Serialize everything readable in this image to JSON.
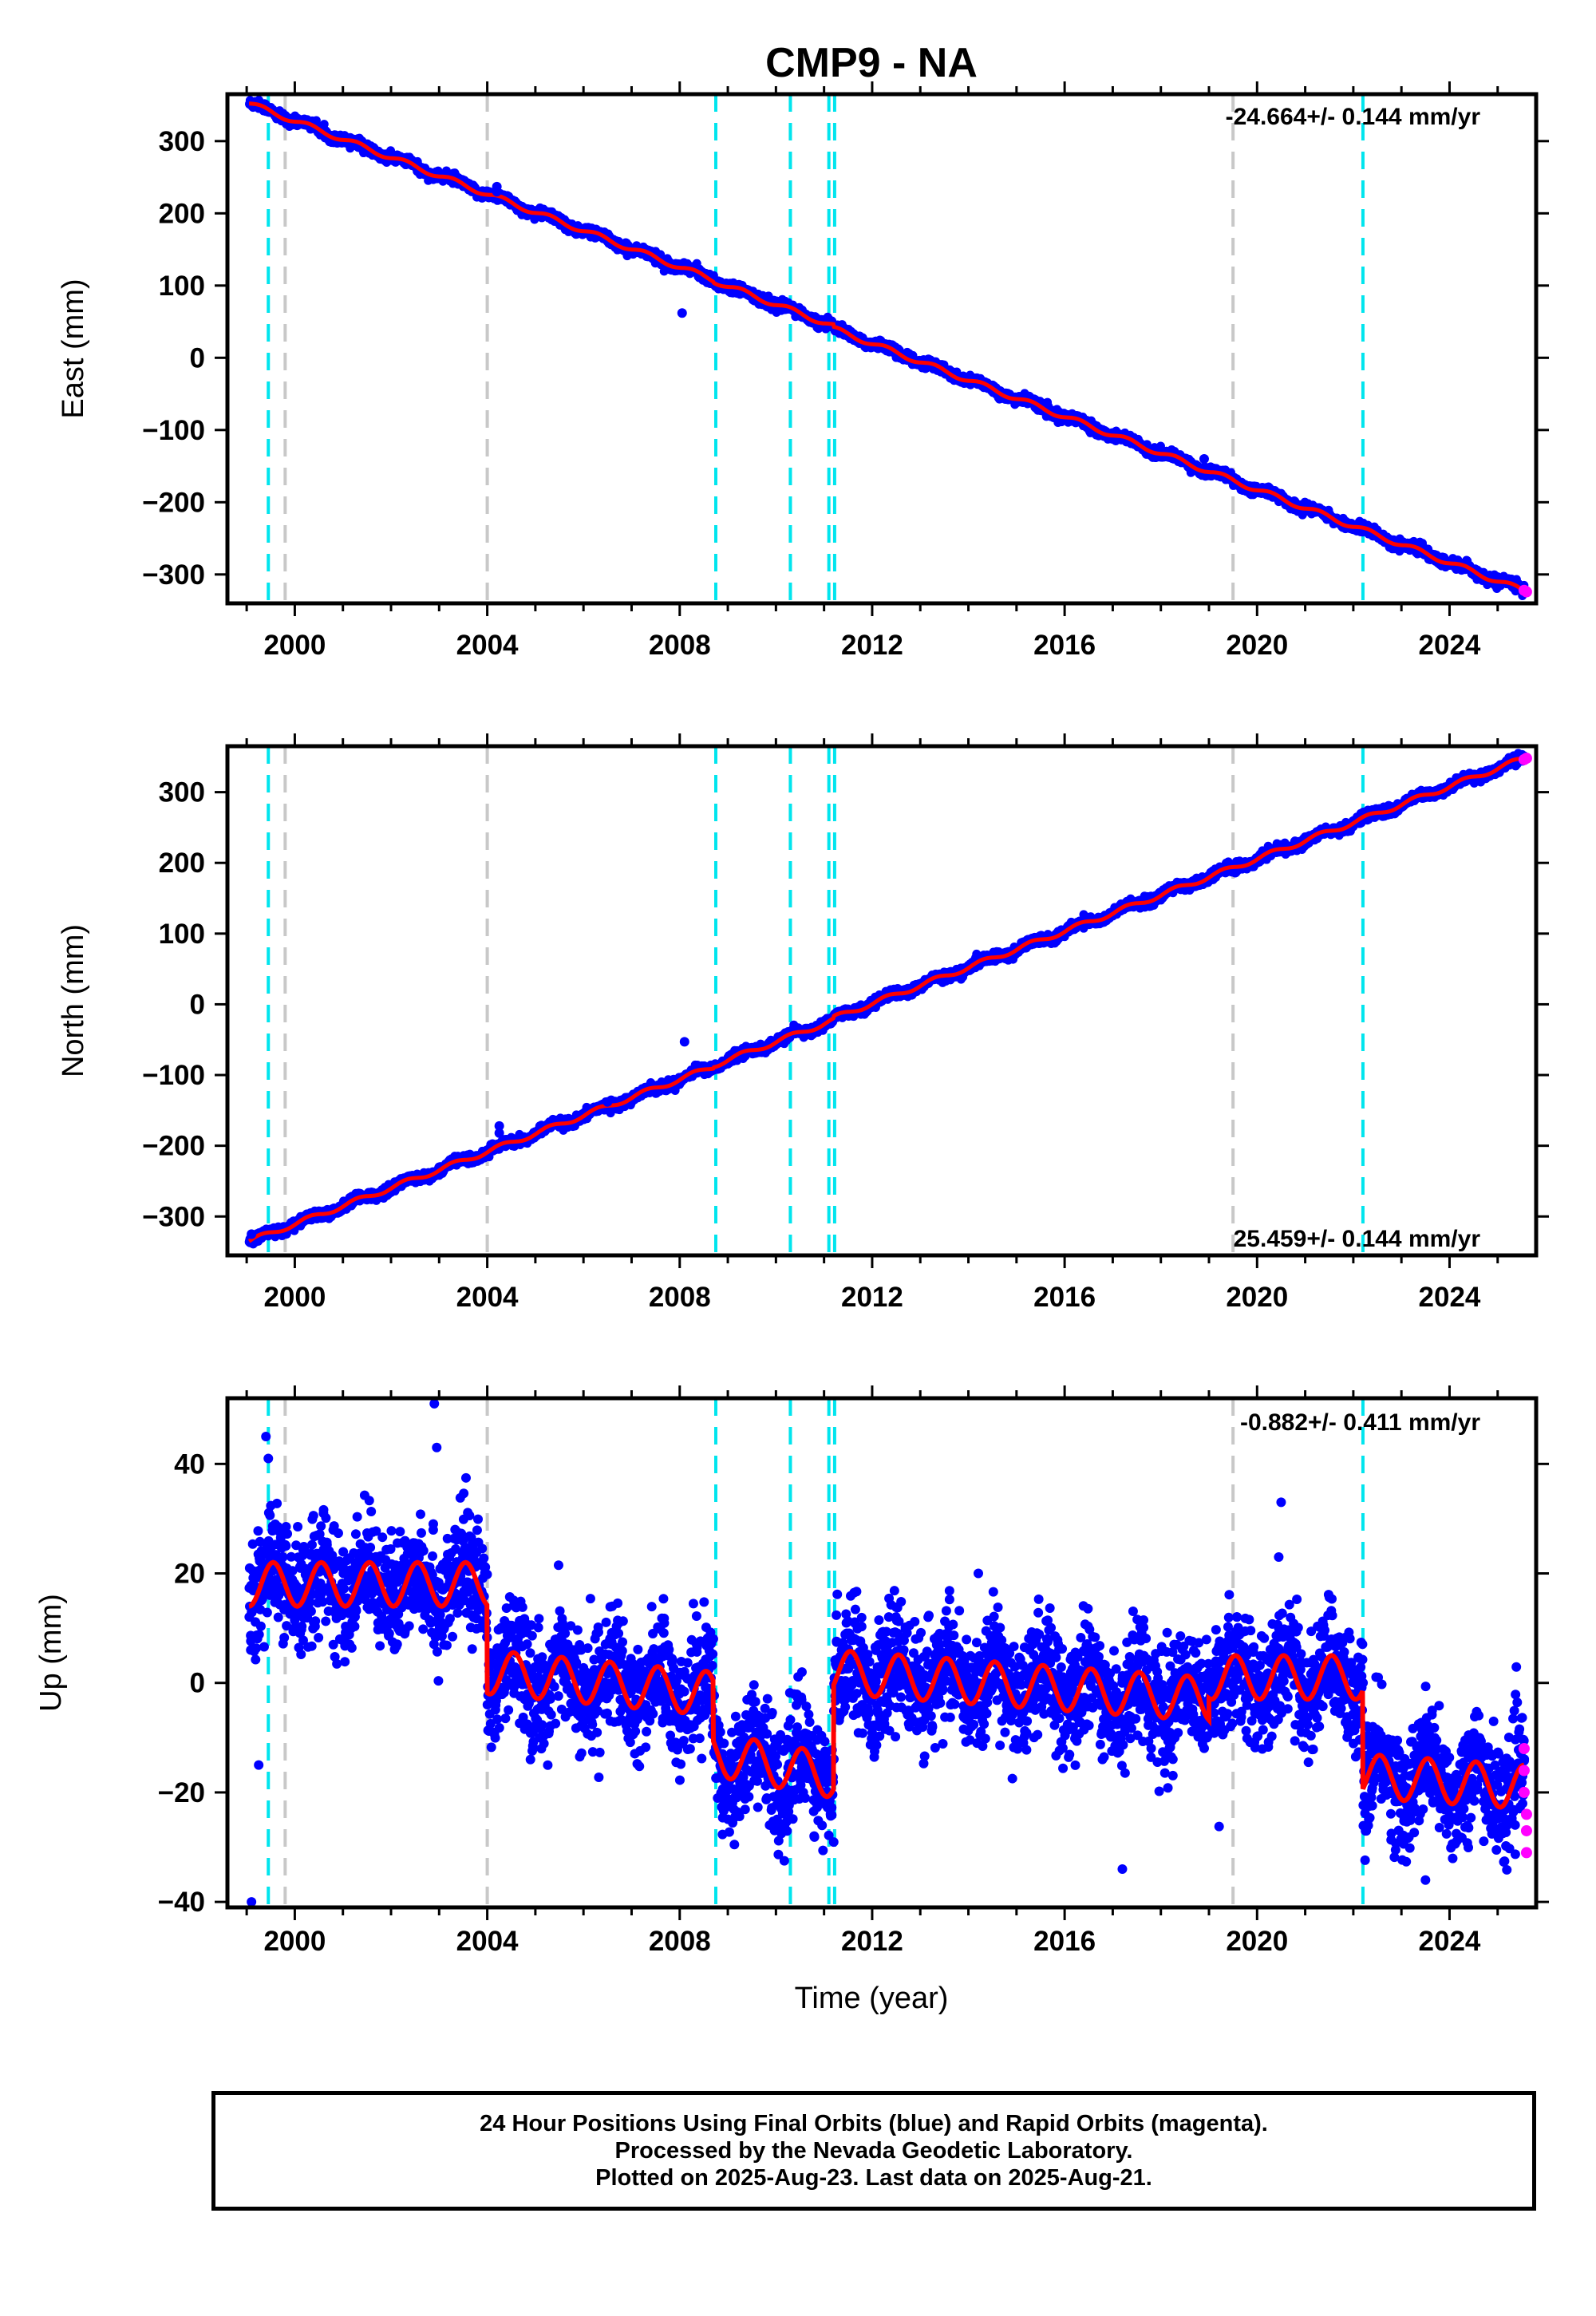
{
  "title": "CMP9 - NA",
  "xlabel": "Time (year)",
  "caption": [
    "24 Hour Positions Using Final Orbits (blue) and Rapid Orbits (magenta).",
    "Processed by the Nevada Geodetic Laboratory.",
    "Plotted on 2025-Aug-23. Last data on 2025-Aug-21."
  ],
  "colors": {
    "final_orbits": "#0000ff",
    "rapid_orbits": "#ff00ff",
    "model_fit": "#ff0000",
    "equipment_change": "#00e5ee",
    "earthquake_event": "#c8c8c8"
  },
  "chart_data": [
    {
      "type": "scatter",
      "component": "east",
      "ylabel": "East (mm)",
      "rate_text": "-24.664+/- 0.144 mm/yr",
      "xlim": [
        1998.6,
        2025.8
      ],
      "ylim": [
        -340,
        365
      ],
      "xticks": [
        2000,
        2004,
        2008,
        2012,
        2016,
        2020,
        2024
      ],
      "yticks": [
        -300,
        -200,
        -100,
        0,
        100,
        200,
        300
      ],
      "final_orbits_trend": {
        "x": [
          1999.05,
          2025.55
        ],
        "y": [
          352,
          -318
        ]
      },
      "rapid_orbits_points": [
        {
          "x": 2025.55,
          "y": -322
        },
        {
          "x": 2025.6,
          "y": -324
        }
      ],
      "outliers": [
        {
          "x": 2004.2,
          "y": 237
        },
        {
          "x": 2004.2,
          "y": 230
        },
        {
          "x": 2008.05,
          "y": 62
        },
        {
          "x": 2018.9,
          "y": -140
        }
      ],
      "model_offsets": [
        {
          "x": 2011.2,
          "dy": -12
        },
        {
          "x": 2008.7,
          "dy": -4
        }
      ]
    },
    {
      "type": "scatter",
      "component": "north",
      "ylabel": "North (mm)",
      "rate_text": "25.459+/- 0.144 mm/yr",
      "xlim": [
        1998.6,
        2025.8
      ],
      "ylim": [
        -355,
        365
      ],
      "xticks": [
        2000,
        2004,
        2008,
        2012,
        2016,
        2020,
        2024
      ],
      "yticks": [
        -300,
        -200,
        -100,
        0,
        100,
        200,
        300
      ],
      "final_orbits_trend": {
        "x": [
          1999.05,
          2025.55
        ],
        "y": [
          -335,
          343
        ]
      },
      "rapid_orbits_points": [
        {
          "x": 2025.55,
          "y": 346
        },
        {
          "x": 2025.6,
          "y": 348
        }
      ],
      "outliers": [
        {
          "x": 1999.1,
          "y": -325
        },
        {
          "x": 2004.25,
          "y": -172
        },
        {
          "x": 2004.25,
          "y": -182
        },
        {
          "x": 2008.1,
          "y": -53
        },
        {
          "x": 2006.5,
          "y": -138
        }
      ],
      "model_offsets": [
        {
          "x": 2011.2,
          "dy": 10
        },
        {
          "x": 2008.7,
          "dy": 6
        }
      ]
    },
    {
      "type": "scatter",
      "component": "up",
      "ylabel": "Up (mm)",
      "rate_text": "-0.882+/- 0.411 mm/yr",
      "xlim": [
        1998.6,
        2025.8
      ],
      "ylim": [
        -41,
        52
      ],
      "xticks": [
        2000,
        2004,
        2008,
        2012,
        2016,
        2020,
        2024
      ],
      "yticks": [
        -40,
        -20,
        0,
        20,
        40
      ],
      "segments": [
        {
          "x0": 1999.05,
          "x1": 2004.0,
          "mean0": 18,
          "mean1": 18
        },
        {
          "x0": 2004.0,
          "x1": 2008.7,
          "mean0": 2,
          "mean1": -2
        },
        {
          "x0": 2008.7,
          "x1": 2011.2,
          "mean0": -13,
          "mean1": -17
        },
        {
          "x0": 2011.2,
          "x1": 2019.0,
          "mean0": 2,
          "mean1": -3
        },
        {
          "x0": 2019.0,
          "x1": 2022.2,
          "mean0": 1,
          "mean1": 1
        },
        {
          "x0": 2022.2,
          "x1": 2025.55,
          "mean0": -17,
          "mean1": -19
        }
      ],
      "seasonal_amplitude": 4,
      "rapid_orbits_points": [
        {
          "x": 2025.55,
          "y": -12
        },
        {
          "x": 2025.55,
          "y": -16
        },
        {
          "x": 2025.55,
          "y": -20
        },
        {
          "x": 2025.6,
          "y": -24
        },
        {
          "x": 2025.6,
          "y": -27
        },
        {
          "x": 2025.6,
          "y": -31
        }
      ],
      "outliers": [
        {
          "x": 1999.1,
          "y": -40
        },
        {
          "x": 1999.4,
          "y": 45
        },
        {
          "x": 1999.45,
          "y": 41
        },
        {
          "x": 2002.9,
          "y": 51
        },
        {
          "x": 2002.95,
          "y": 43
        },
        {
          "x": 2017.2,
          "y": -34
        },
        {
          "x": 2020.5,
          "y": 33
        },
        {
          "x": 2020.45,
          "y": 23
        },
        {
          "x": 2023.5,
          "y": -36
        },
        {
          "x": 1999.25,
          "y": -15
        }
      ]
    }
  ],
  "event_lines": [
    {
      "x": 1999.45,
      "kind": "equipment"
    },
    {
      "x": 1999.8,
      "kind": "earthquake"
    },
    {
      "x": 2004.0,
      "kind": "earthquake"
    },
    {
      "x": 2008.75,
      "kind": "equipment"
    },
    {
      "x": 2010.3,
      "kind": "earthquake"
    },
    {
      "x": 2010.3,
      "kind": "equipment"
    },
    {
      "x": 2011.1,
      "kind": "equipment"
    },
    {
      "x": 2011.22,
      "kind": "equipment"
    },
    {
      "x": 2019.5,
      "kind": "earthquake"
    },
    {
      "x": 2022.2,
      "kind": "equipment"
    }
  ]
}
